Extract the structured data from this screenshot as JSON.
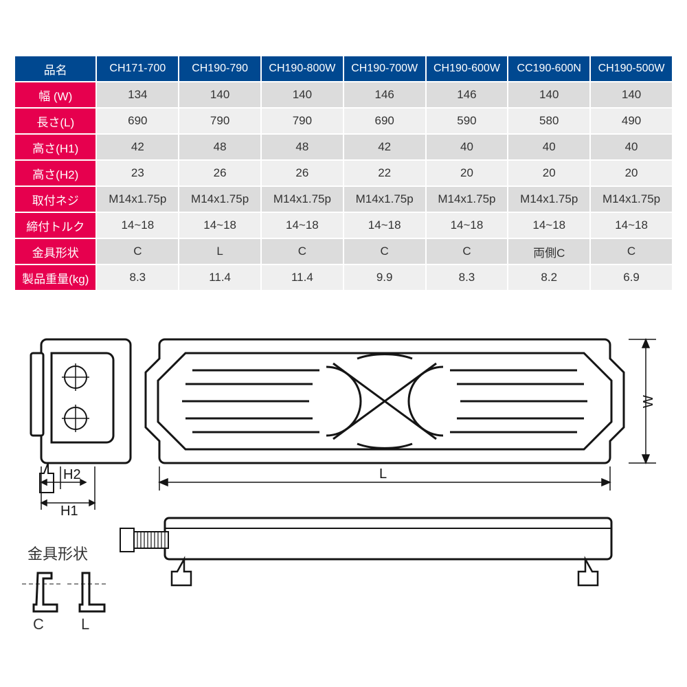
{
  "table": {
    "header_corner": "品名",
    "models": [
      "CH171-700",
      "CH190-790",
      "CH190-800W",
      "CH190-700W",
      "CH190-600W",
      "CC190-600N",
      "CH190-500W"
    ],
    "rows": [
      {
        "label": "幅 (W)",
        "values": [
          "134",
          "140",
          "140",
          "146",
          "146",
          "140",
          "140"
        ]
      },
      {
        "label": "長さ(L)",
        "values": [
          "690",
          "790",
          "790",
          "690",
          "590",
          "580",
          "490"
        ]
      },
      {
        "label": "高さ(H1)",
        "values": [
          "42",
          "48",
          "48",
          "42",
          "40",
          "40",
          "40"
        ]
      },
      {
        "label": "高さ(H2)",
        "values": [
          "23",
          "26",
          "26",
          "22",
          "20",
          "20",
          "20"
        ]
      },
      {
        "label": "取付ネジ",
        "values": [
          "M14x1.75p",
          "M14x1.75p",
          "M14x1.75p",
          "M14x1.75p",
          "M14x1.75p",
          "M14x1.75p",
          "M14x1.75p"
        ]
      },
      {
        "label": "締付トルク",
        "values": [
          "14~18",
          "14~18",
          "14~18",
          "14~18",
          "14~18",
          "14~18",
          "14~18"
        ]
      },
      {
        "label": "金具形状",
        "values": [
          "C",
          "L",
          "C",
          "C",
          "C",
          "両側C",
          "C"
        ]
      },
      {
        "label": "製品重量(kg)",
        "values": [
          "8.3",
          "11.4",
          "11.4",
          "9.9",
          "8.3",
          "8.2",
          "6.9"
        ]
      }
    ],
    "colors": {
      "header_bg": "#004890",
      "row_label_bg": "#e6004e",
      "cell_odd_bg": "#dcdcdc",
      "cell_even_bg": "#efefef",
      "header_text": "#ffffff",
      "cell_text": "#333333",
      "border": "#ffffff"
    },
    "font_size": 17
  },
  "diagram": {
    "labels": {
      "H1": "H1",
      "H2": "H2",
      "L": "L",
      "W": "W",
      "shape_title": "金具形状",
      "C": "C",
      "L_shape": "L"
    },
    "colors": {
      "stroke": "#151515",
      "fill": "#ffffff",
      "inner_fill": "#f5f5f5"
    },
    "stroke_width_main": 3,
    "stroke_width_thin": 1.5
  }
}
